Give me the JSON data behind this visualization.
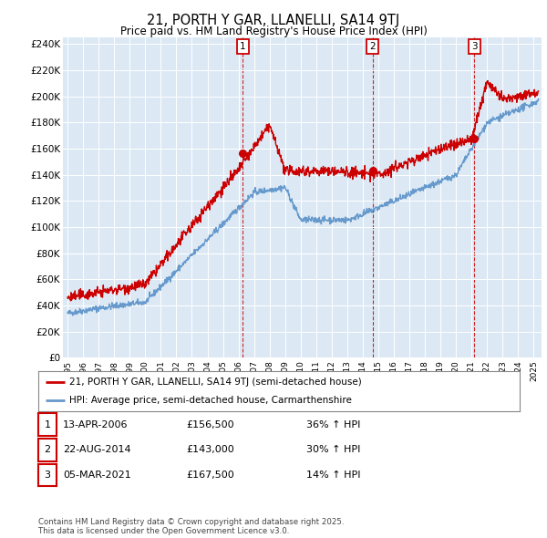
{
  "title": "21, PORTH Y GAR, LLANELLI, SA14 9TJ",
  "subtitle": "Price paid vs. HM Land Registry's House Price Index (HPI)",
  "plot_bg_color": "#dce9f5",
  "sale_color": "#cc0000",
  "hpi_color": "#6699cc",
  "ylim": [
    0,
    245000
  ],
  "yticks": [
    0,
    20000,
    40000,
    60000,
    80000,
    100000,
    120000,
    140000,
    160000,
    180000,
    200000,
    220000,
    240000
  ],
  "ytick_labels": [
    "£0",
    "£20K",
    "£40K",
    "£60K",
    "£80K",
    "£100K",
    "£120K",
    "£140K",
    "£160K",
    "£180K",
    "£200K",
    "£220K",
    "£240K"
  ],
  "sale_events": [
    {
      "date_year": 2006.28,
      "price": 156500,
      "label": "1"
    },
    {
      "date_year": 2014.64,
      "price": 143000,
      "label": "2"
    },
    {
      "date_year": 2021.17,
      "price": 167500,
      "label": "3"
    }
  ],
  "legend_sale_label": "21, PORTH Y GAR, LLANELLI, SA14 9TJ (semi-detached house)",
  "legend_hpi_label": "HPI: Average price, semi-detached house, Carmarthenshire",
  "table_rows": [
    {
      "num": "1",
      "date": "13-APR-2006",
      "price": "£156,500",
      "change": "36% ↑ HPI"
    },
    {
      "num": "2",
      "date": "22-AUG-2014",
      "price": "£143,000",
      "change": "30% ↑ HPI"
    },
    {
      "num": "3",
      "date": "05-MAR-2021",
      "price": "£167,500",
      "change": "14% ↑ HPI"
    }
  ],
  "footer": "Contains HM Land Registry data © Crown copyright and database right 2025.\nThis data is licensed under the Open Government Licence v3.0.",
  "xmin": 1994.7,
  "xmax": 2025.5
}
